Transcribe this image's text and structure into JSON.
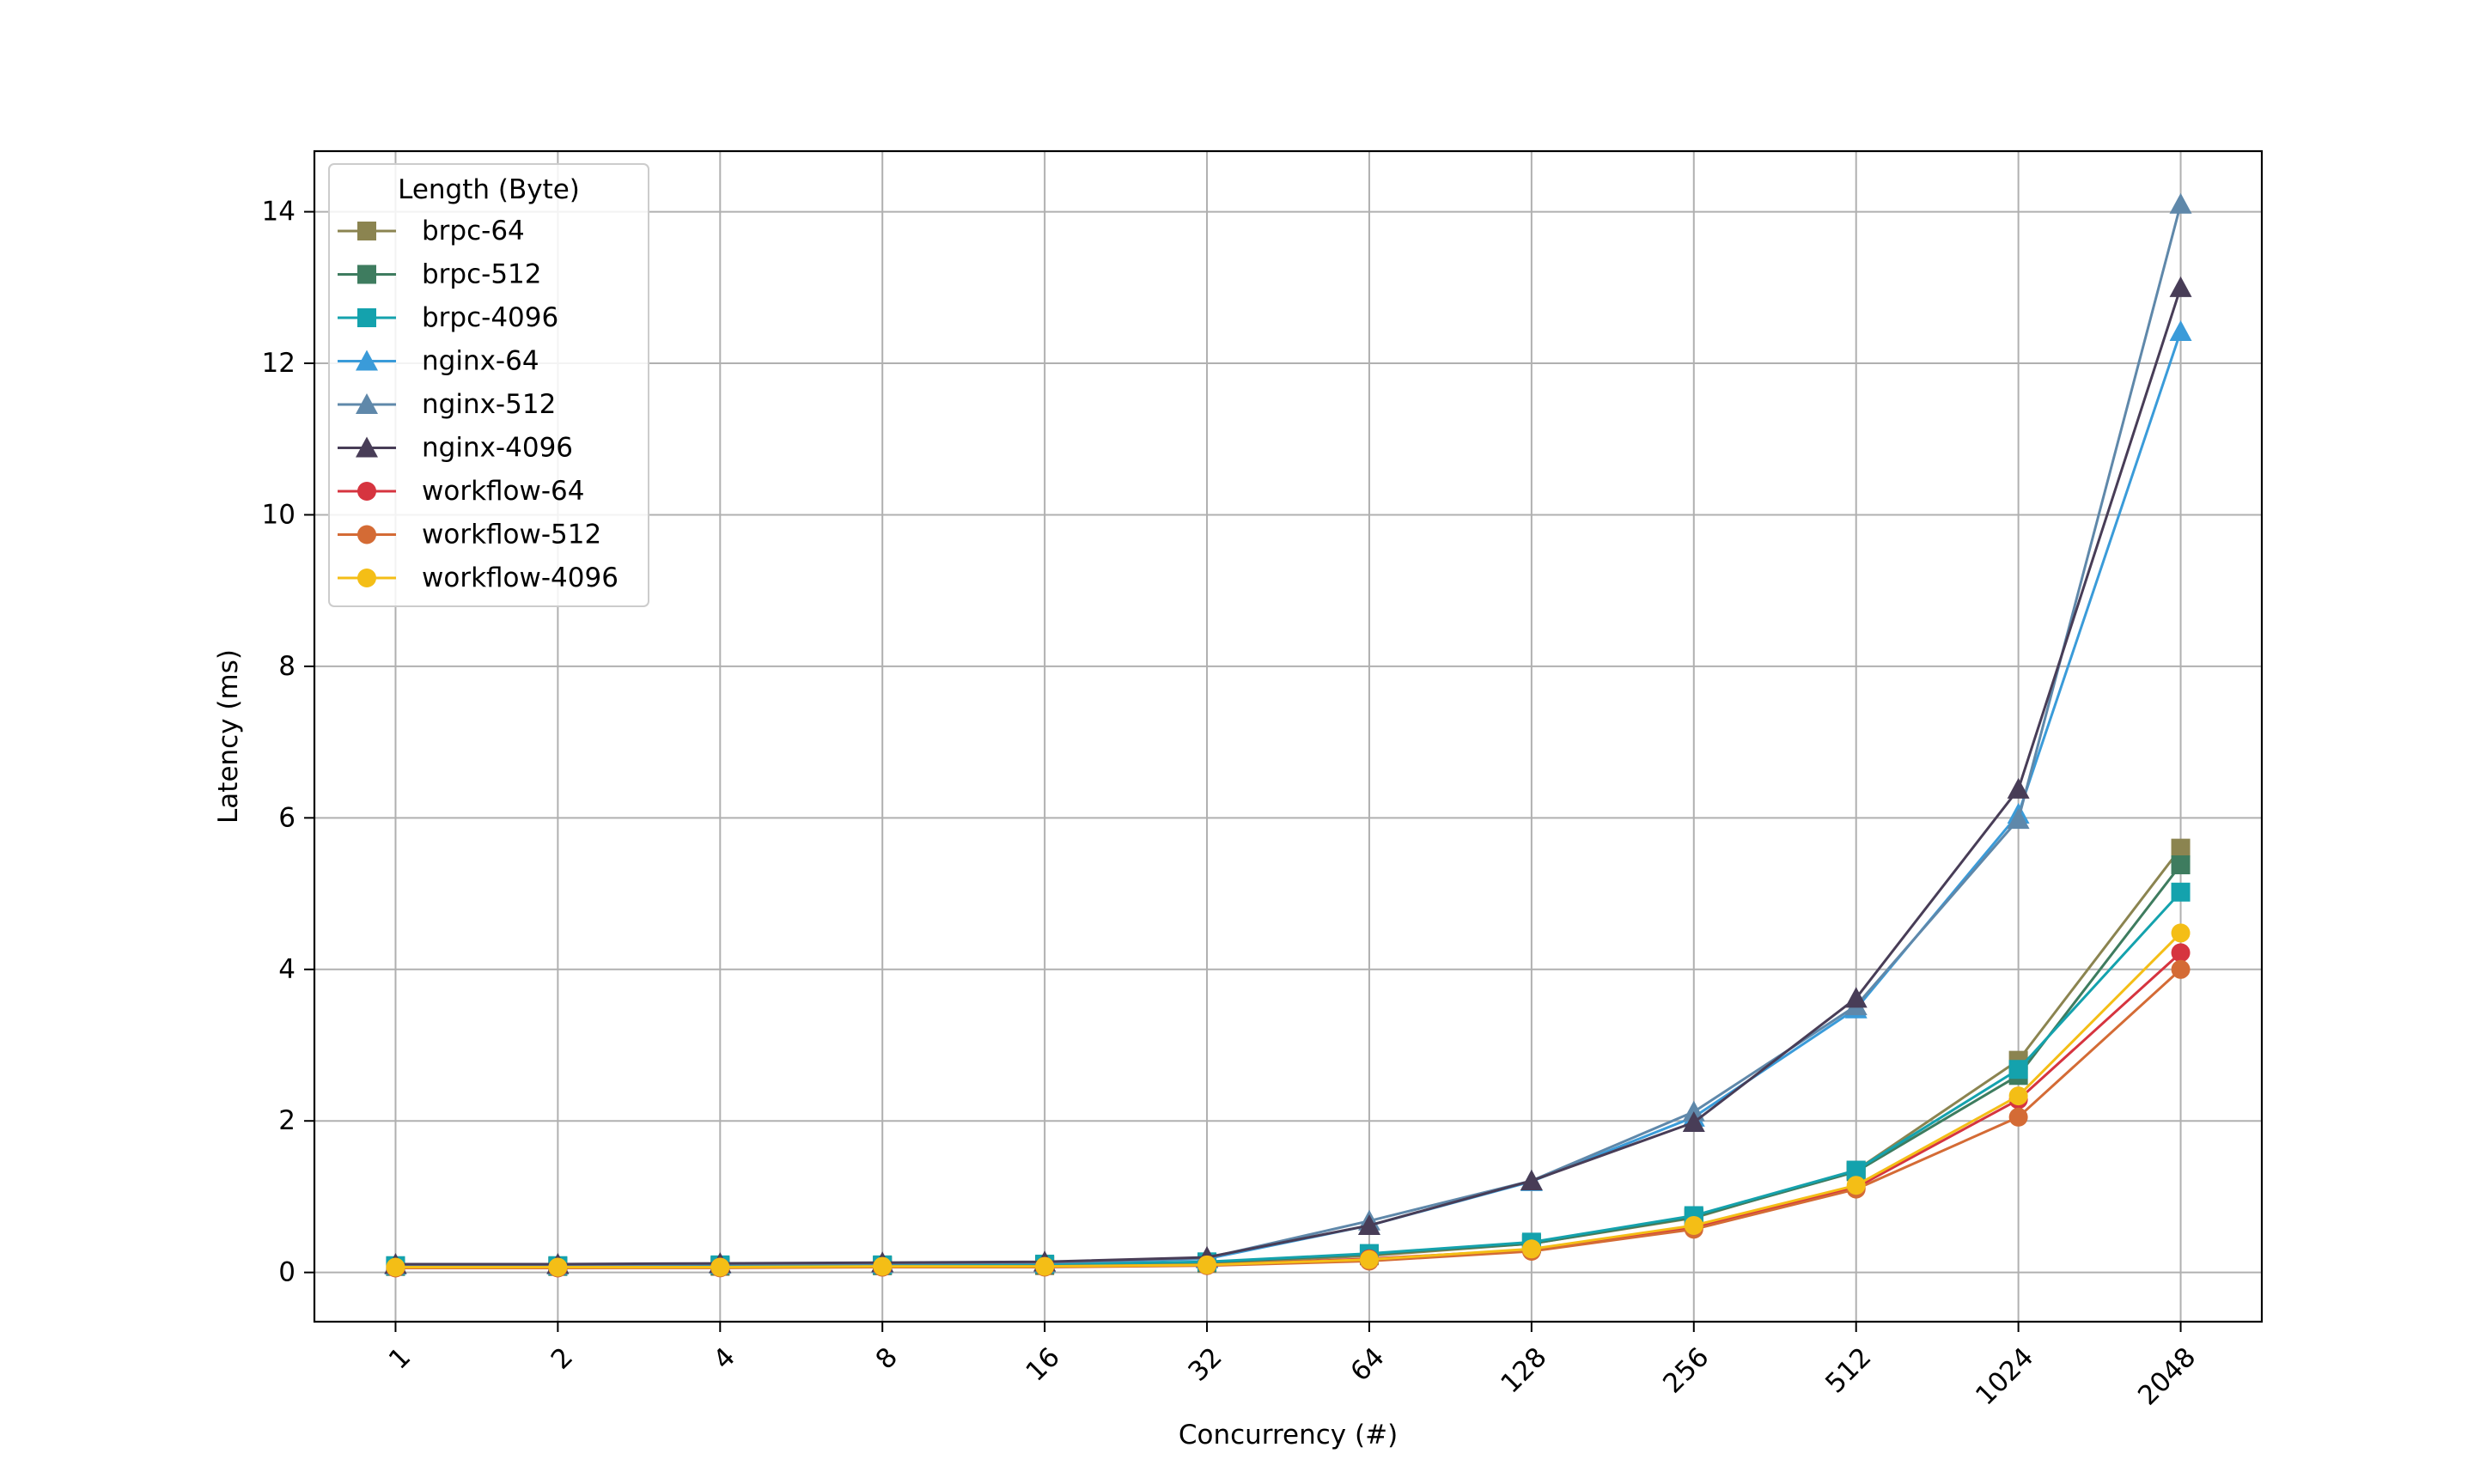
{
  "chart_data": {
    "type": "line",
    "title": "",
    "xlabel": "Concurrency (#)",
    "ylabel": "Latency (ms)",
    "categories": [
      "1",
      "2",
      "4",
      "8",
      "16",
      "32",
      "64",
      "128",
      "256",
      "512",
      "1024",
      "2048"
    ],
    "x_scale": "categorical",
    "ylim": [
      -0.65,
      14.8
    ],
    "yticks": [
      0,
      2,
      4,
      6,
      8,
      10,
      12,
      14
    ],
    "grid": true,
    "legend": {
      "title": "Length (Byte)",
      "placement": "top-left"
    },
    "series": [
      {
        "name": "brpc-64",
        "color": "#8b8450",
        "marker": "square",
        "values": [
          0.08,
          0.08,
          0.08,
          0.09,
          0.09,
          0.12,
          0.22,
          0.38,
          0.72,
          1.35,
          2.8,
          5.6
        ]
      },
      {
        "name": "brpc-512",
        "color": "#3e7c5f",
        "marker": "square",
        "values": [
          0.08,
          0.08,
          0.09,
          0.09,
          0.1,
          0.13,
          0.24,
          0.38,
          0.73,
          1.33,
          2.6,
          5.38
        ]
      },
      {
        "name": "brpc-4096",
        "color": "#14a2ad",
        "marker": "square",
        "values": [
          0.09,
          0.09,
          0.1,
          0.1,
          0.11,
          0.14,
          0.25,
          0.4,
          0.75,
          1.35,
          2.68,
          5.02
        ]
      },
      {
        "name": "nginx-64",
        "color": "#3a9bd9",
        "marker": "triangle",
        "values": [
          0.1,
          0.1,
          0.11,
          0.12,
          0.13,
          0.18,
          0.62,
          1.2,
          2.05,
          3.48,
          6.05,
          12.42
        ]
      },
      {
        "name": "nginx-512",
        "color": "#5f88aa",
        "marker": "triangle",
        "values": [
          0.1,
          0.1,
          0.11,
          0.12,
          0.13,
          0.19,
          0.68,
          1.21,
          2.12,
          3.52,
          5.98,
          14.1
        ]
      },
      {
        "name": "nginx-4096",
        "color": "#483d57",
        "marker": "triangle",
        "values": [
          0.11,
          0.11,
          0.12,
          0.13,
          0.14,
          0.2,
          0.62,
          1.21,
          1.98,
          3.62,
          6.38,
          13.0
        ]
      },
      {
        "name": "workflow-64",
        "color": "#d6343f",
        "marker": "circle",
        "values": [
          0.06,
          0.06,
          0.07,
          0.07,
          0.08,
          0.1,
          0.18,
          0.3,
          0.6,
          1.12,
          2.28,
          4.22
        ]
      },
      {
        "name": "workflow-512",
        "color": "#d46b35",
        "marker": "circle",
        "values": [
          0.06,
          0.06,
          0.06,
          0.07,
          0.07,
          0.09,
          0.15,
          0.28,
          0.57,
          1.1,
          2.05,
          4.0
        ]
      },
      {
        "name": "workflow-4096",
        "color": "#f4be16",
        "marker": "circle",
        "values": [
          0.07,
          0.07,
          0.07,
          0.08,
          0.08,
          0.1,
          0.17,
          0.31,
          0.62,
          1.15,
          2.33,
          4.48
        ]
      }
    ]
  }
}
